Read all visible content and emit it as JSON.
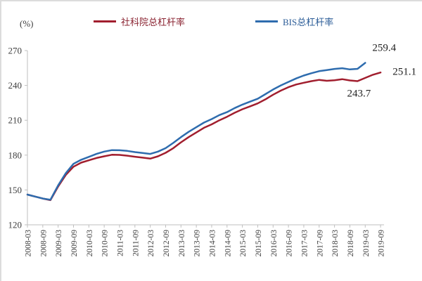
{
  "page": {
    "background": "#ffffff"
  },
  "unit_label": "(%)",
  "legend": {
    "items": [
      {
        "label": "社科院总杠杆率",
        "color": "#a11e2e",
        "label_color": "#8a2331"
      },
      {
        "label": "BIS总杠杆率",
        "color": "#2e6cae",
        "label_color": "#2b5c97"
      }
    ]
  },
  "annotations": [
    {
      "text": "259.4",
      "series": "BIS总杠杆率",
      "at": "2019-03",
      "value": 259.4
    },
    {
      "text": "251.1",
      "series": "社科院总杠杆率",
      "at": "2019-09",
      "value": 251.1
    },
    {
      "text": "243.7",
      "series": "社科院总杠杆率",
      "at": "2018-12",
      "value": 243.7
    }
  ],
  "chart_data": {
    "type": "line",
    "title": "",
    "unit": "(%)",
    "ylim": [
      120,
      270
    ],
    "yticks": [
      120,
      150,
      180,
      210,
      240,
      270
    ],
    "grid": false,
    "legend_position": "top",
    "x_frequency": "quarterly starting 2008-03",
    "x_tick_labels": [
      "2008-03",
      "2008-09",
      "2009-03",
      "2009-09",
      "2010-03",
      "2010-09",
      "2011-03",
      "2011-09",
      "2012-03",
      "2012-09",
      "2013-03",
      "2013-09",
      "2014-03",
      "2014-09",
      "2015-03",
      "2015-09",
      "2016-03",
      "2016-09",
      "2017-03",
      "2017-09",
      "2018-03",
      "2018-09",
      "2019-03",
      "2019-09"
    ],
    "series": [
      {
        "name": "社科院总杠杆率",
        "color": "#a11e2e",
        "start": "2008-03",
        "end": "2019-09",
        "values": [
          146,
          144.3,
          142.6,
          141.2,
          153,
          163,
          170,
          173.5,
          175.5,
          177.5,
          179,
          180.3,
          180.2,
          179.5,
          178.6,
          177.8,
          177,
          179,
          182,
          186,
          191,
          195.5,
          199.5,
          203.5,
          206.5,
          210,
          213,
          216.5,
          219.5,
          222,
          224.5,
          228,
          232,
          235.5,
          238.5,
          240.8,
          242.3,
          243.7,
          244.8,
          244,
          244.5,
          245.4,
          244.3,
          243.7,
          246.5,
          249.2,
          251.1
        ]
      },
      {
        "name": "BIS总杠杆率",
        "color": "#2e6cae",
        "start": "2008-03",
        "end": "2019-03",
        "values": [
          146,
          144.3,
          142.6,
          141.6,
          154,
          164.5,
          172.5,
          176,
          178.5,
          181,
          183,
          184.3,
          184.2,
          183.6,
          182.6,
          181.8,
          181,
          183,
          186,
          190.5,
          195.5,
          200,
          204,
          208,
          211,
          214.5,
          217,
          220.5,
          223.5,
          226,
          228.5,
          232.5,
          236.5,
          240,
          243,
          246,
          248.5,
          250.5,
          252.3,
          253.2,
          254.2,
          254.8,
          253.8,
          254.3,
          259.4
        ]
      }
    ]
  }
}
